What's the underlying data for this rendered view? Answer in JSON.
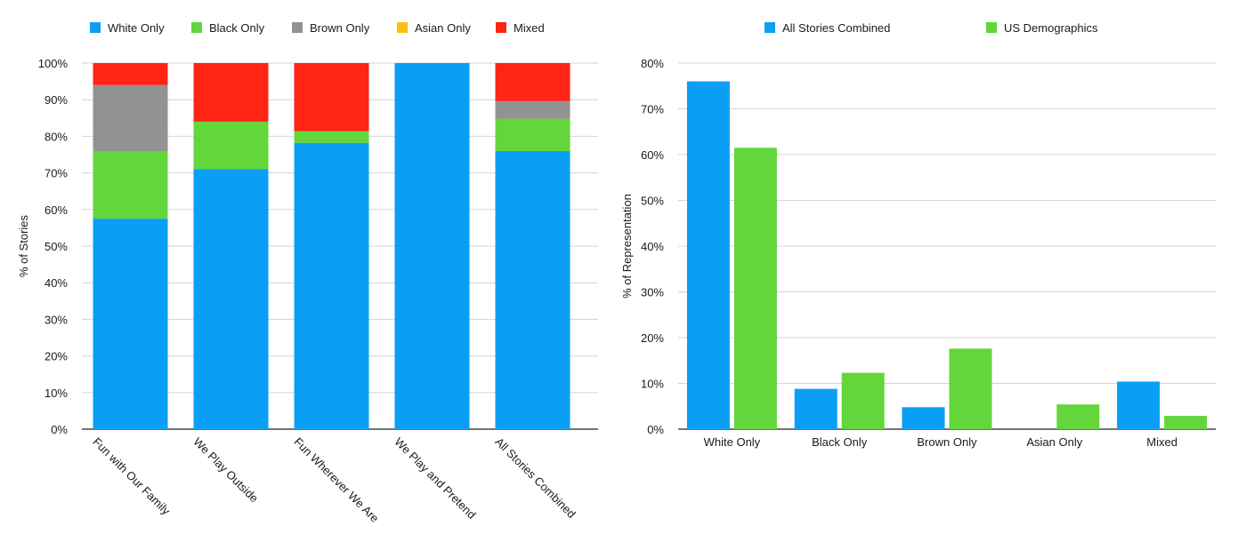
{
  "chart_data": [
    {
      "type": "bar",
      "stacked": true,
      "categories": [
        "Fun with Our Family",
        "We Play Outside",
        "Fun Wherever We Are",
        "We Play and Pretend",
        "All Stories Combined"
      ],
      "series": [
        {
          "name": "White Only",
          "color": "#0a9ff5",
          "values": [
            57.5,
            71,
            78.2,
            100,
            76
          ]
        },
        {
          "name": "Black Only",
          "color": "#62d63a",
          "values": [
            18.3,
            13,
            3.2,
            0,
            8.8
          ]
        },
        {
          "name": "Brown Only",
          "color": "#929292",
          "values": [
            18.2,
            0,
            0,
            0,
            4.8
          ]
        },
        {
          "name": "Asian Only",
          "color": "#f9be17",
          "values": [
            0,
            0,
            0,
            0,
            0
          ]
        },
        {
          "name": "Mixed",
          "color": "#ff2414",
          "values": [
            6,
            16,
            18.6,
            0,
            10.4
          ]
        }
      ],
      "ylabel": "% of Stories",
      "xlabel": "",
      "ylim": [
        0,
        100
      ],
      "yticks": [
        "0%",
        "10%",
        "20%",
        "30%",
        "40%",
        "50%",
        "60%",
        "70%",
        "80%",
        "90%",
        "100%"
      ],
      "grid": true,
      "legend": "top"
    },
    {
      "type": "bar",
      "categories": [
        "White Only",
        "Black Only",
        "Brown Only",
        "Asian Only",
        "Mixed"
      ],
      "series": [
        {
          "name": "All Stories Combined",
          "color": "#0a9ff5",
          "values": [
            76,
            8.8,
            4.8,
            0,
            10.4
          ]
        },
        {
          "name": "US Demographics",
          "color": "#62d63a",
          "values": [
            61.5,
            12.3,
            17.6,
            5.4,
            2.9
          ]
        }
      ],
      "ylabel": "% of Representation",
      "xlabel": "",
      "ylim": [
        0,
        80
      ],
      "yticks": [
        "0%",
        "10%",
        "20%",
        "30%",
        "40%",
        "50%",
        "60%",
        "70%",
        "80%"
      ],
      "grid": true,
      "legend": "top"
    }
  ]
}
